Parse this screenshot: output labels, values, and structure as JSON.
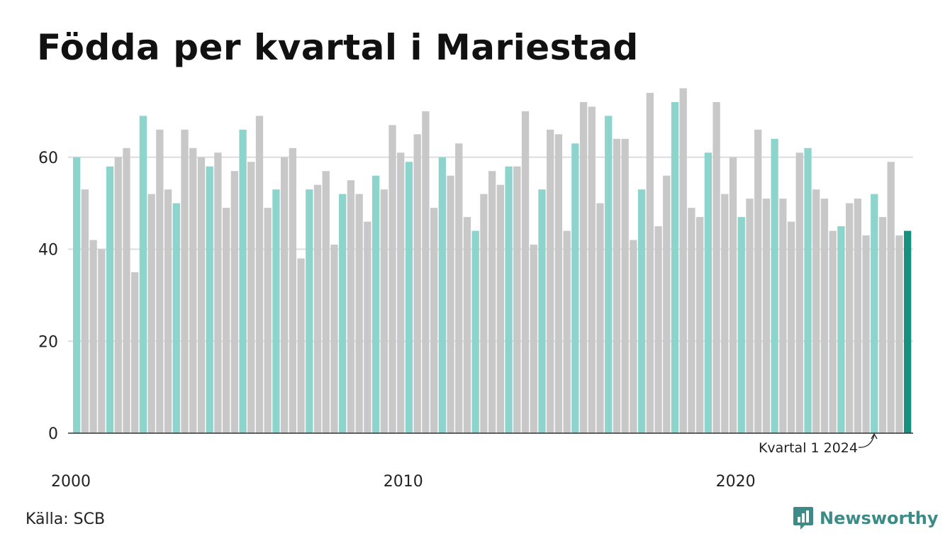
{
  "title": "Födda per kvartal i Mariestad",
  "source": "Källa: SCB",
  "brand": "Newsworthy",
  "colors": {
    "q1": "#8dd4cd",
    "other": "#c8c8c8",
    "latest": "#17907f",
    "grid": "#dddddd",
    "axis": "#333333",
    "brand": "#3d8a86"
  },
  "chart_data": {
    "type": "bar",
    "x_start": "2000 Q1",
    "x_ticks": [
      "2000",
      "2010",
      "2020"
    ],
    "y_ticks": [
      "0",
      "20",
      "40",
      "60"
    ],
    "ylim": [
      0,
      76
    ],
    "grid": true,
    "annotation": "Kvartal 1 2024",
    "values": [
      60,
      53,
      42,
      40,
      58,
      60,
      62,
      35,
      69,
      52,
      66,
      53,
      50,
      66,
      62,
      60,
      58,
      61,
      49,
      57,
      66,
      59,
      69,
      49,
      53,
      60,
      62,
      38,
      53,
      54,
      57,
      41,
      52,
      55,
      52,
      46,
      56,
      53,
      67,
      61,
      59,
      65,
      70,
      49,
      60,
      56,
      63,
      47,
      44,
      52,
      57,
      54,
      58,
      58,
      70,
      41,
      53,
      66,
      65,
      44,
      63,
      72,
      71,
      50,
      69,
      64,
      64,
      42,
      53,
      74,
      45,
      56,
      72,
      75,
      49,
      47,
      61,
      72,
      52,
      60,
      47,
      51,
      66,
      51,
      64,
      51,
      46,
      61,
      62,
      53,
      51,
      44,
      45,
      50,
      51,
      43,
      52,
      47,
      59,
      43,
      44
    ]
  }
}
